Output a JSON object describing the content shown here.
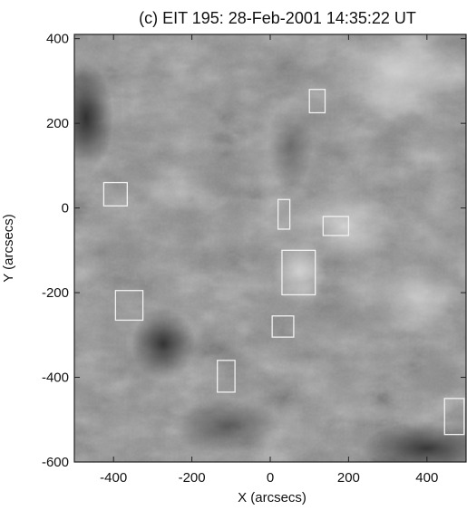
{
  "chart_data": {
    "type": "heatmap",
    "title": "(c) EIT 195: 28-Feb-2001 14:35:22 UT",
    "xlabel": "X (arcsecs)",
    "ylabel": "Y (arcsecs)",
    "xlim": [
      -500,
      500
    ],
    "ylim": [
      -600,
      410
    ],
    "x_ticks": [
      -400,
      -200,
      0,
      200,
      400
    ],
    "y_ticks": [
      -600,
      -400,
      -200,
      0,
      200,
      400
    ],
    "x_tick_labels": [
      "-400",
      "-200",
      "0",
      "200",
      "400"
    ],
    "y_tick_labels": [
      "-600",
      "-400",
      "-200",
      "0",
      "200",
      "400"
    ],
    "image": "grayscale EUV solar image",
    "boxes": [
      {
        "x0": 100,
        "x1": 140,
        "y0": 225,
        "y1": 280
      },
      {
        "x0": -425,
        "x1": -365,
        "y0": 5,
        "y1": 60
      },
      {
        "x0": 20,
        "x1": 50,
        "y0": -50,
        "y1": 20
      },
      {
        "x0": 135,
        "x1": 200,
        "y0": -65,
        "y1": -20
      },
      {
        "x0": 30,
        "x1": 115,
        "y0": -205,
        "y1": -100
      },
      {
        "x0": -395,
        "x1": -325,
        "y0": -265,
        "y1": -195
      },
      {
        "x0": 5,
        "x1": 60,
        "y0": -305,
        "y1": -255
      },
      {
        "x0": -135,
        "x1": -90,
        "y0": -435,
        "y1": -360
      },
      {
        "x0": 445,
        "x1": 495,
        "y0": -535,
        "y1": -450
      }
    ]
  }
}
